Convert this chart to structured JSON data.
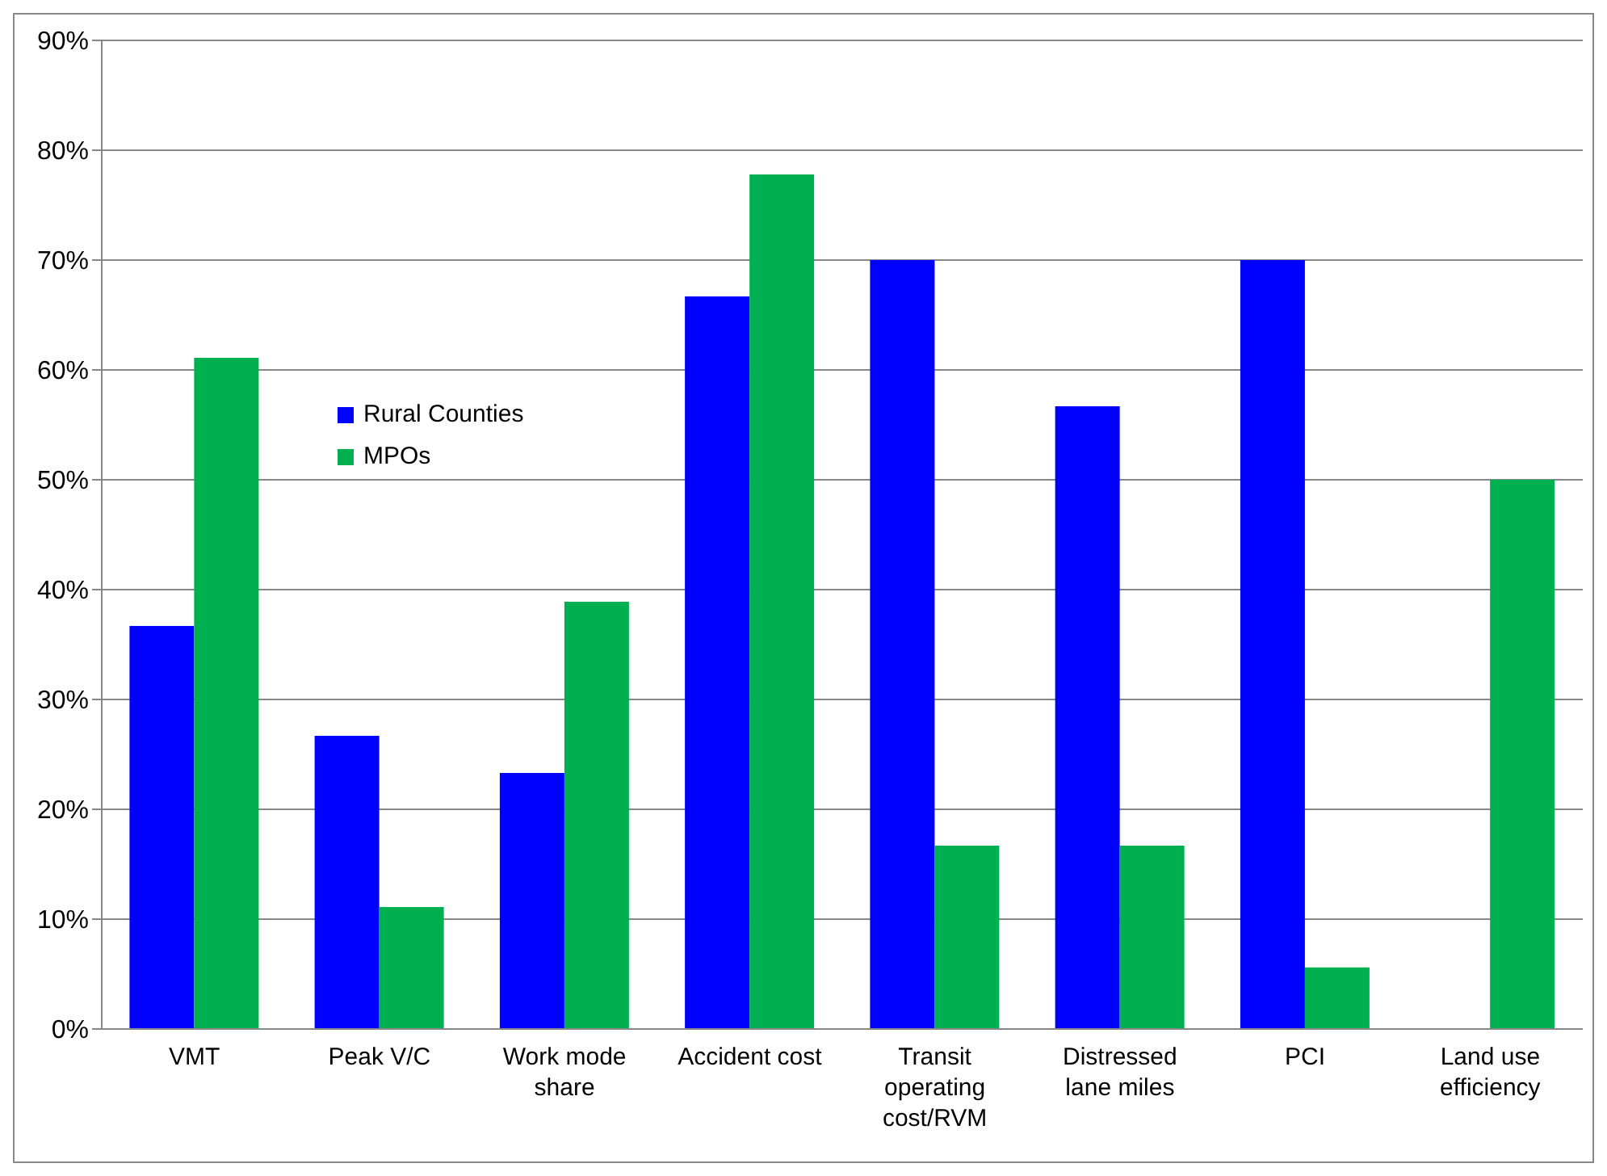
{
  "chart_data": {
    "type": "bar",
    "categories": [
      "VMT",
      "Peak V/C",
      "Work mode share",
      "Accident cost",
      "Transit operating cost/RVM",
      "Distressed lane miles",
      "PCI",
      "Land use efficiency"
    ],
    "series": [
      {
        "name": "Rural Counties",
        "color": "#0000ff",
        "values": [
          36.7,
          26.7,
          23.3,
          66.7,
          70,
          56.7,
          70,
          null
        ]
      },
      {
        "name": "MPOs",
        "color": "#00b050",
        "values": [
          61.1,
          11.1,
          38.9,
          77.8,
          16.7,
          16.7,
          5.6,
          50
        ]
      }
    ],
    "ylim": [
      0,
      90
    ],
    "yticks": [
      {
        "value": 0,
        "label": "0%"
      },
      {
        "value": 10,
        "label": "10%"
      },
      {
        "value": 20,
        "label": "20%"
      },
      {
        "value": 30,
        "label": "30%"
      },
      {
        "value": 40,
        "label": "40%"
      },
      {
        "value": 50,
        "label": "50%"
      },
      {
        "value": 60,
        "label": "60%"
      },
      {
        "value": 70,
        "label": "70%"
      },
      {
        "value": 80,
        "label": "80%"
      },
      {
        "value": 90,
        "label": "90%"
      }
    ],
    "grid": "y",
    "legend": "top left"
  }
}
